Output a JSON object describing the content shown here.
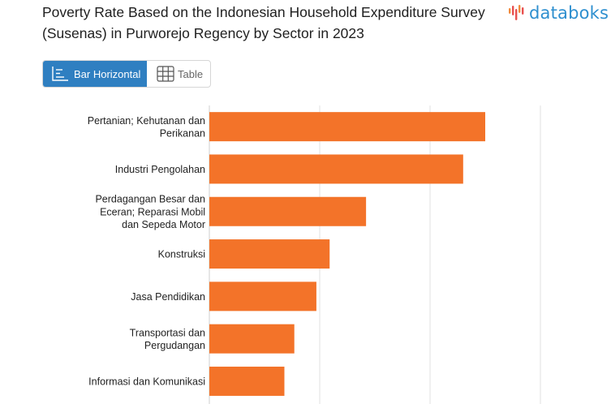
{
  "header": {
    "title": "Poverty Rate Based on the Indonesian Household Expenditure Survey (Susenas) in Purworejo Regency by Sector in 2023",
    "brand": "databoks"
  },
  "view_toggle": {
    "bar_label": "Bar Horizontal",
    "table_label": "Table",
    "active": "bar"
  },
  "colors": {
    "bar": "#f37329",
    "accent": "#2f7fc1",
    "grid": "#e2e2e2",
    "logo": "#2e8fcf"
  },
  "chart_data": {
    "type": "bar",
    "orientation": "horizontal",
    "title": "Poverty Rate Based on the Indonesian Household Expenditure Survey (Susenas) in Purworejo Regency by Sector in 2023",
    "categories": [
      "Pertanian; Kehutanan dan Perikanan",
      "Industri Pengolahan",
      "Perdagangan Besar dan Eceran; Reparasi Mobil dan Sepeda Motor",
      "Konstruksi",
      "Jasa Pendidikan",
      "Transportasi dan Pergudangan",
      "Informasi dan Komunikasi"
    ],
    "values": [
      25.0,
      23.0,
      14.2,
      10.9,
      9.7,
      7.7,
      6.8
    ],
    "xlim": [
      0,
      30
    ],
    "grid": true,
    "legend": "none"
  }
}
